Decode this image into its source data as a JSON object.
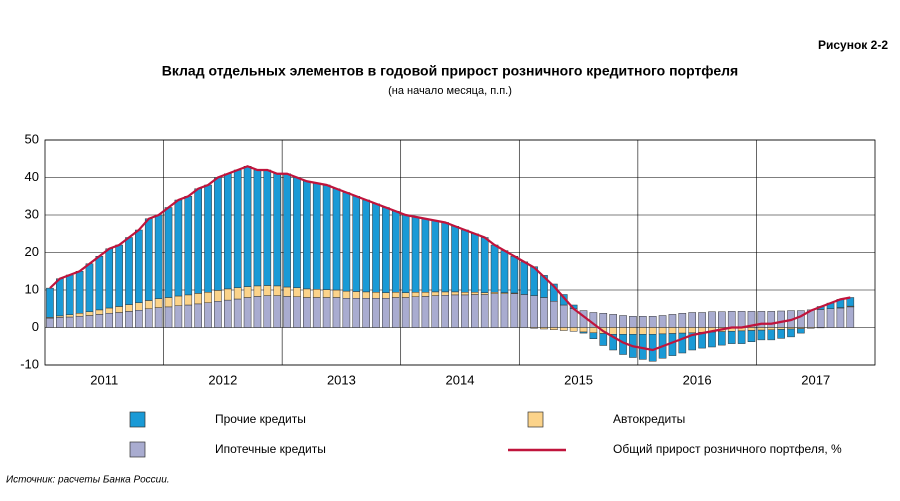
{
  "figure_label": "Рисунок 2-2",
  "source": "Источник: расчеты Банка России.",
  "chart_data": {
    "type": "stacked_bar_line",
    "title": "Вклад отдельных элементов в годовой прирост розничного кредитного портфеля",
    "subtitle": "(на начало месяца, п.п.)",
    "years": [
      "2011",
      "2012",
      "2013",
      "2014",
      "2015",
      "2016",
      "2017"
    ],
    "ylim": [
      -10,
      50
    ],
    "yticks": [
      -10,
      0,
      10,
      20,
      30,
      40,
      50
    ],
    "grid": true,
    "series": [
      {
        "name": "Ипотечные кредиты",
        "color": "#a9acd0",
        "values": [
          2.5,
          2.7,
          2.8,
          3,
          3.2,
          3.5,
          3.8,
          4,
          4.3,
          4.6,
          5,
          5.3,
          5.5,
          5.8,
          6,
          6.3,
          6.6,
          7,
          7.3,
          7.6,
          8,
          8.3,
          8.5,
          8.5,
          8.3,
          8.2,
          8,
          8,
          8,
          8,
          7.8,
          7.8,
          7.8,
          7.8,
          7.8,
          8,
          8,
          8.2,
          8.3,
          8.5,
          8.6,
          8.7,
          8.7,
          8.8,
          8.8,
          9,
          9,
          9,
          8.8,
          8.5,
          8,
          7,
          6,
          5,
          4.5,
          4,
          3.8,
          3.5,
          3.2,
          3,
          3,
          3,
          3.2,
          3.5,
          3.8,
          4,
          4,
          4.2,
          4.2,
          4.3,
          4.3,
          4.3,
          4.3,
          4.3,
          4.4,
          4.5,
          4.5,
          4.7,
          4.8,
          5,
          5.2,
          5.5
        ]
      },
      {
        "name": "Автокредиты",
        "color": "#fbd38a",
        "values": [
          0.2,
          0.4,
          0.6,
          0.8,
          1,
          1.2,
          1.4,
          1.6,
          1.8,
          2,
          2.2,
          2.4,
          2.5,
          2.6,
          2.7,
          2.8,
          2.8,
          2.9,
          3,
          3,
          2.9,
          2.8,
          2.7,
          2.6,
          2.5,
          2.4,
          2.3,
          2.2,
          2.1,
          2,
          1.9,
          1.8,
          1.7,
          1.6,
          1.5,
          1.4,
          1.3,
          1.2,
          1.1,
          1,
          0.9,
          0.8,
          0.7,
          0.6,
          0.5,
          0.4,
          0.3,
          0.2,
          0,
          -0.2,
          -0.4,
          -0.6,
          -0.8,
          -1,
          -1.2,
          -1.4,
          -1.6,
          -1.8,
          -1.8,
          -1.8,
          -1.8,
          -1.8,
          -1.7,
          -1.6,
          -1.5,
          -1.4,
          -1.3,
          -1.2,
          -1.1,
          -1,
          -0.9,
          -0.8,
          -0.7,
          -0.6,
          -0.5,
          -0.4,
          -0.3,
          -0.2,
          -0.1,
          0,
          0.1,
          0.2
        ]
      },
      {
        "name": "Прочие кредиты",
        "color": "#1a9ad6",
        "values": [
          7.8,
          9.9,
          10.6,
          11.2,
          12.8,
          14.3,
          15.8,
          16.4,
          17.9,
          19.4,
          21.8,
          22.3,
          24,
          25.6,
          26.3,
          27.9,
          28.6,
          30.1,
          30.7,
          31.4,
          32.1,
          30.9,
          30.8,
          29.9,
          30.2,
          29.4,
          28.7,
          28.3,
          27.9,
          27,
          26.3,
          25.4,
          24.5,
          23.6,
          22.7,
          21.6,
          20.7,
          20.1,
          19.6,
          19,
          18.5,
          17.5,
          16.6,
          15.6,
          14.7,
          12.6,
          11.2,
          9.8,
          8.7,
          7.7,
          5.9,
          4.6,
          2.8,
          1,
          -0.3,
          -1.6,
          -3.2,
          -4.2,
          -5.4,
          -6.2,
          -6.7,
          -7.2,
          -6.5,
          -5.9,
          -5.3,
          -4.6,
          -4.2,
          -4,
          -3.6,
          -3.3,
          -3.4,
          -3,
          -2.6,
          -2.7,
          -2.4,
          -2.1,
          -1.2,
          0,
          0.8,
          1.5,
          2.2,
          2.3
        ]
      }
    ],
    "line": {
      "name": "Общий прирост розничного портфеля, %",
      "color": "#c0143c",
      "values": [
        10.5,
        13,
        14,
        15,
        17,
        19,
        21,
        22,
        24,
        26,
        29,
        30,
        32,
        34,
        35,
        37,
        38,
        40,
        41,
        42,
        43,
        42,
        42,
        41,
        41,
        40,
        39,
        38.5,
        38,
        37,
        36,
        35,
        34,
        33,
        32,
        31,
        30,
        29.5,
        29,
        28.5,
        28,
        27,
        26,
        25,
        24,
        22,
        20.5,
        19,
        17.5,
        16,
        13.5,
        11,
        8,
        5,
        3,
        1,
        -1,
        -2.5,
        -4,
        -5,
        -5.5,
        -6,
        -5,
        -4,
        -3,
        -2,
        -1.5,
        -1,
        -0.5,
        0,
        0,
        0.5,
        1,
        1,
        1.5,
        2,
        3,
        4.5,
        5.5,
        6.5,
        7.5,
        8
      ]
    }
  }
}
